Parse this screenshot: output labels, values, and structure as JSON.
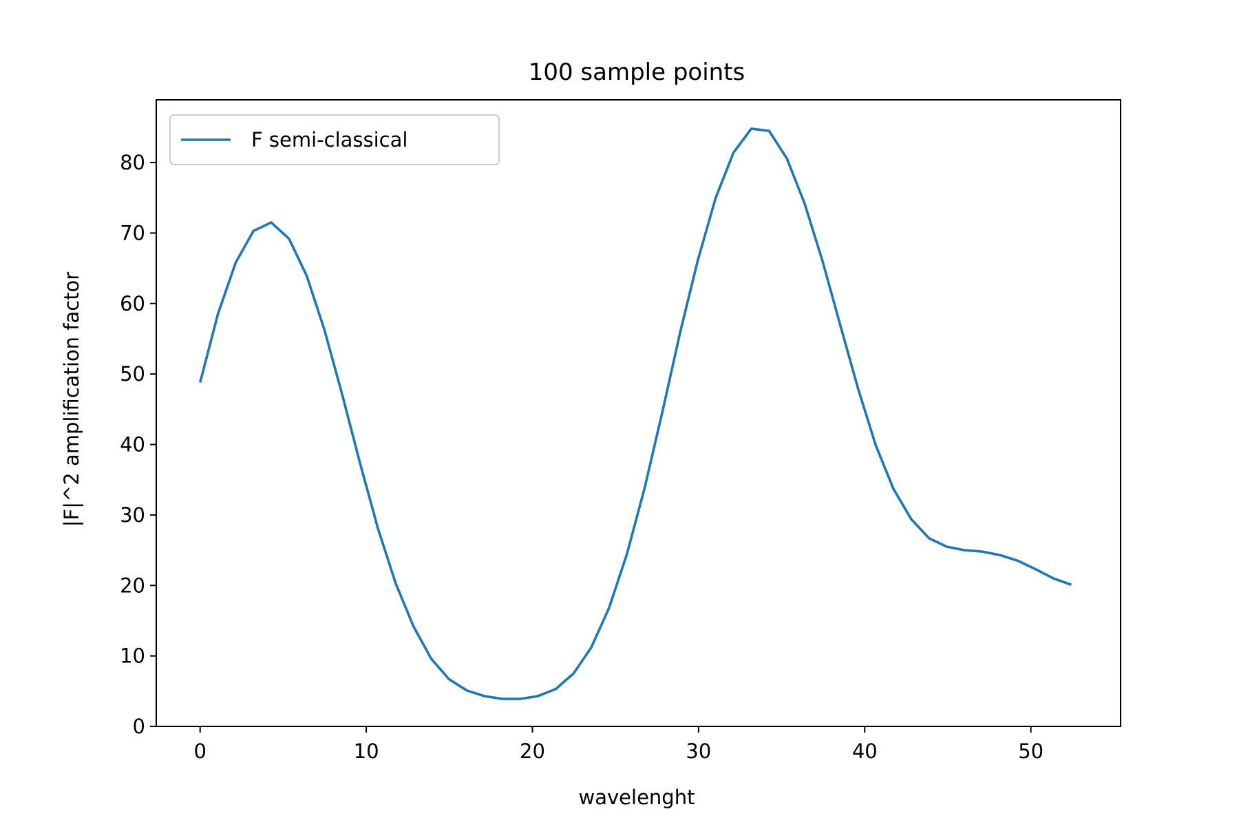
{
  "chart_data": {
    "type": "line",
    "title": "100 sample points",
    "xlabel": "wavelenght",
    "ylabel": "|F|^2 amplification factor",
    "xlim": [
      -2.64,
      55.4
    ],
    "ylim": [
      0,
      88.9
    ],
    "xticks": [
      0,
      10,
      20,
      30,
      40,
      50
    ],
    "yticks": [
      0,
      10,
      20,
      30,
      40,
      50,
      60,
      70,
      80
    ],
    "grid": false,
    "legend_position": "top-left",
    "series": [
      {
        "name": "F semi-classical",
        "color": "#1f77b4",
        "x": [
          0,
          1.07,
          2.14,
          3.21,
          4.28,
          5.35,
          6.42,
          7.49,
          8.56,
          9.63,
          10.7,
          11.77,
          12.84,
          13.91,
          14.98,
          16.05,
          17.12,
          18.19,
          19.26,
          20.33,
          21.4,
          22.47,
          23.54,
          24.61,
          25.68,
          26.75,
          27.82,
          28.89,
          29.96,
          31.03,
          32.1,
          33.17,
          34.24,
          35.31,
          36.38,
          37.45,
          38.52,
          39.59,
          40.66,
          41.73,
          42.8,
          43.87,
          44.94,
          46.01,
          47.08,
          48.15,
          49.22,
          50.29,
          51.36,
          52.43
        ],
        "y": [
          48.8,
          58.5,
          65.8,
          70.3,
          71.5,
          69.2,
          63.9,
          56.2,
          47.0,
          37.3,
          28.1,
          20.3,
          14.2,
          9.6,
          6.7,
          5.1,
          4.3,
          3.9,
          3.9,
          4.3,
          5.3,
          7.5,
          11.2,
          16.8,
          24.4,
          33.8,
          44.6,
          55.9,
          66.2,
          75.0,
          81.4,
          84.8,
          84.5,
          80.6,
          74.2,
          66.1,
          57.0,
          48.0,
          39.9,
          33.7,
          29.4,
          26.7,
          25.5,
          25.0,
          24.8,
          24.3,
          23.5,
          22.3,
          21.0,
          20.1
        ]
      }
    ]
  }
}
